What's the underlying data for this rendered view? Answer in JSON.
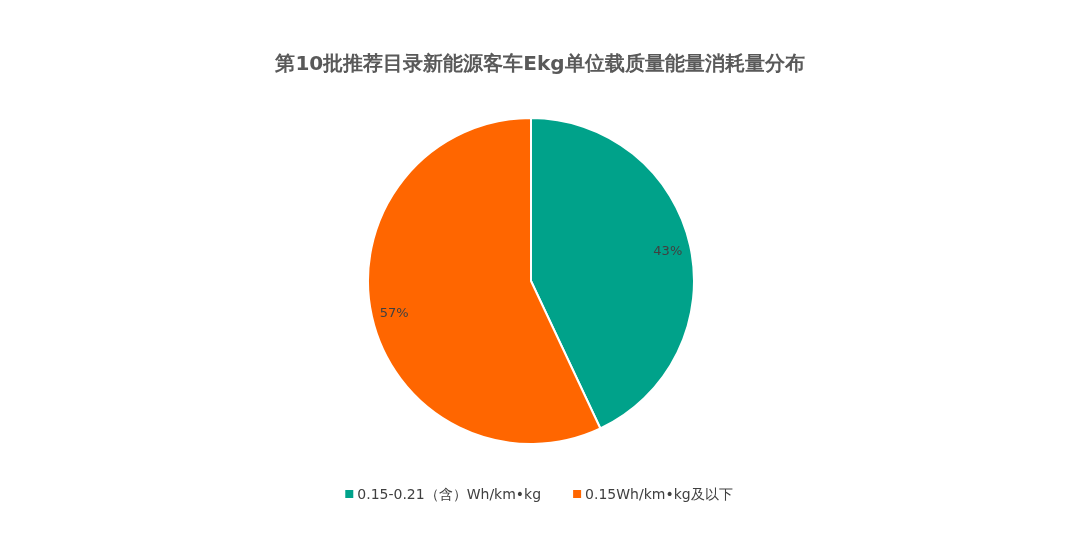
{
  "chart_data": {
    "type": "pie",
    "title": "第10批推荐目录新能源客车Ekg单位载质量能量消耗量分布",
    "categories": [
      "0.15-0.21（含）Wh/km•kg",
      "0.15Wh/km•kg及以下"
    ],
    "values": [
      43,
      57
    ],
    "colors": [
      "#00a28a",
      "#ff6600"
    ],
    "value_labels": [
      "43%",
      "57%"
    ],
    "legend": "bottom"
  }
}
